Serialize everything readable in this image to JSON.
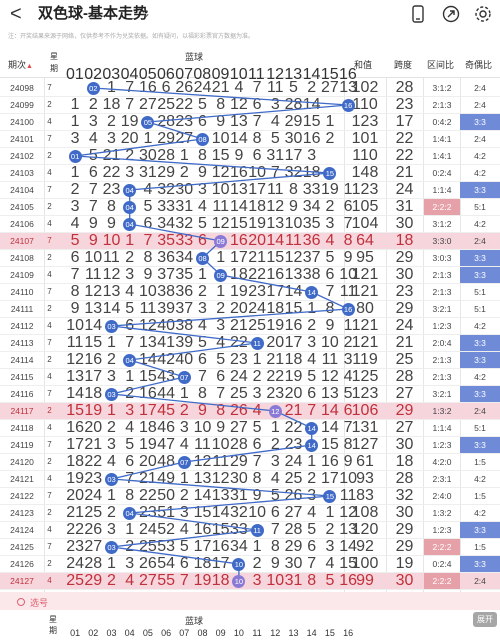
{
  "header": {
    "back_label": "<",
    "title": "双色球-基本走势",
    "title_chevron": "⌄",
    "notice": "注：开奖结果来源于网络，仅供参考不作为兑奖依据。如有疑问，以福彩彩票官方数据为准。"
  },
  "columns": {
    "issue": "期次",
    "star": "星期",
    "blue_group": "蓝球",
    "blue_numbers": [
      "01",
      "02",
      "03",
      "04",
      "05",
      "06",
      "07",
      "08",
      "09",
      "10",
      "11",
      "12",
      "13",
      "14",
      "15",
      "16"
    ],
    "sum": "和值",
    "span": "跨度",
    "zone_ratio": "区间比",
    "odd_even": "奇偶比"
  },
  "rows": [
    {
      "issue": "24098",
      "star": "7",
      "blue": 2,
      "hl": false,
      "sum": "102",
      "span": "28",
      "zone": "3:1:2",
      "oe": "2:4",
      "zone_red": false,
      "oe_blue": false,
      "cells": [
        "",
        "",
        "1",
        "7",
        "16",
        "6",
        "26",
        "24",
        "21",
        "4",
        "7",
        "11",
        "5",
        "2",
        "27",
        "13"
      ]
    },
    {
      "issue": "24099",
      "star": "2",
      "blue": 16,
      "hl": false,
      "sum": "110",
      "span": "23",
      "zone": "2:1:3",
      "oe": "2:4",
      "zone_red": false,
      "oe_blue": false,
      "cells": [
        "1",
        "2",
        "18",
        "7",
        "27",
        "25",
        "22",
        "5",
        "8",
        "12",
        "6",
        "3",
        "28",
        "14",
        "",
        ""
      ]
    },
    {
      "issue": "24100",
      "star": "4",
      "blue": 5,
      "hl": false,
      "sum": "123",
      "span": "17",
      "zone": "0:4:2",
      "oe": "3:3",
      "zone_red": false,
      "oe_blue": true,
      "cells": [
        "1",
        "3",
        "2",
        "19",
        "",
        "28",
        "23",
        "6",
        "9",
        "13",
        "7",
        "4",
        "29",
        "15",
        "1",
        ""
      ]
    },
    {
      "issue": "24101",
      "star": "7",
      "blue": 8,
      "hl": false,
      "sum": "101",
      "span": "22",
      "zone": "1:4:1",
      "oe": "2:4",
      "zone_red": false,
      "oe_blue": false,
      "cells": [
        "3",
        "4",
        "3",
        "20",
        "1",
        "29",
        "27",
        "",
        "10",
        "14",
        "8",
        "5",
        "30",
        "16",
        "2",
        ""
      ]
    },
    {
      "issue": "24102",
      "star": "2",
      "blue": 1,
      "hl": false,
      "sum": "110",
      "span": "22",
      "zone": "1:4:1",
      "oe": "4:2",
      "zone_red": false,
      "oe_blue": false,
      "cells": [
        "",
        "5",
        "21",
        "2",
        "30",
        "28",
        "1",
        "8",
        "15",
        "9",
        "6",
        "31",
        "17",
        "3",
        "",
        ""
      ]
    },
    {
      "issue": "24103",
      "star": "4",
      "blue": 15,
      "hl": false,
      "sum": "148",
      "span": "21",
      "zone": "0:2:4",
      "oe": "4:2",
      "zone_red": false,
      "oe_blue": false,
      "cells": [
        "1",
        "6",
        "22",
        "3",
        "31",
        "29",
        "2",
        "9",
        "12",
        "16",
        "10",
        "7",
        "32",
        "18",
        "",
        ""
      ]
    },
    {
      "issue": "24104",
      "star": "7",
      "blue": 4,
      "hl": false,
      "sum": "123",
      "span": "24",
      "zone": "1:1:4",
      "oe": "3:3",
      "zone_red": false,
      "oe_blue": true,
      "cells": [
        "2",
        "7",
        "23",
        "",
        "4",
        "32",
        "30",
        "3",
        "10",
        "13",
        "17",
        "11",
        "8",
        "33",
        "19",
        "1"
      ]
    },
    {
      "issue": "24105",
      "star": "2",
      "blue": 4,
      "hl": false,
      "sum": "105",
      "span": "31",
      "zone": "2:2:2",
      "oe": "5:1",
      "zone_red": true,
      "oe_blue": false,
      "cells": [
        "3",
        "7",
        "8",
        "",
        "5",
        "33",
        "31",
        "4",
        "11",
        "14",
        "18",
        "12",
        "9",
        "34",
        "2",
        "6"
      ]
    },
    {
      "issue": "24106",
      "star": "4",
      "blue": 4,
      "hl": false,
      "sum": "104",
      "span": "30",
      "zone": "3:1:2",
      "oe": "4:2",
      "zone_red": false,
      "oe_blue": false,
      "cells": [
        "4",
        "9",
        "9",
        "",
        "6",
        "34",
        "32",
        "5",
        "12",
        "15",
        "19",
        "13",
        "10",
        "35",
        "3",
        "7"
      ]
    },
    {
      "issue": "24107",
      "star": "7",
      "blue": 9,
      "hl": true,
      "sum": "64",
      "span": "18",
      "zone": "3:3:0",
      "oe": "2:4",
      "zone_red": false,
      "oe_blue": false,
      "cells": [
        "5",
        "9",
        "10",
        "1",
        "7",
        "35",
        "33",
        "6",
        "",
        "16",
        "20",
        "14",
        "11",
        "36",
        "4",
        "8"
      ]
    },
    {
      "issue": "24108",
      "star": "2",
      "blue": 8,
      "hl": false,
      "sum": "95",
      "span": "29",
      "zone": "3:0:3",
      "oe": "3:3",
      "zone_red": false,
      "oe_blue": true,
      "cells": [
        "6",
        "10",
        "11",
        "2",
        "8",
        "36",
        "34",
        "",
        "1",
        "17",
        "21",
        "15",
        "12",
        "37",
        "5",
        "9"
      ]
    },
    {
      "issue": "24109",
      "star": "4",
      "blue": 9,
      "hl": false,
      "sum": "121",
      "span": "30",
      "zone": "2:1:3",
      "oe": "3:3",
      "zone_red": false,
      "oe_blue": true,
      "cells": [
        "7",
        "11",
        "12",
        "3",
        "9",
        "37",
        "35",
        "1",
        "",
        "18",
        "22",
        "16",
        "13",
        "38",
        "6",
        "10"
      ]
    },
    {
      "issue": "24110",
      "star": "7",
      "blue": 14,
      "hl": false,
      "sum": "121",
      "span": "23",
      "zone": "2:1:3",
      "oe": "5:1",
      "zone_red": false,
      "oe_blue": false,
      "cells": [
        "8",
        "12",
        "13",
        "4",
        "10",
        "38",
        "36",
        "2",
        "1",
        "19",
        "23",
        "17",
        "14",
        "",
        "7",
        "11"
      ]
    },
    {
      "issue": "24111",
      "star": "2",
      "blue": 16,
      "hl": false,
      "sum": "80",
      "span": "29",
      "zone": "3:2:1",
      "oe": "5:1",
      "zone_red": false,
      "oe_blue": false,
      "cells": [
        "9",
        "13",
        "14",
        "5",
        "11",
        "39",
        "37",
        "3",
        "2",
        "20",
        "24",
        "18",
        "15",
        "1",
        "8",
        ""
      ]
    },
    {
      "issue": "24112",
      "star": "4",
      "blue": 3,
      "hl": false,
      "sum": "121",
      "span": "24",
      "zone": "1:2:3",
      "oe": "4:2",
      "zone_red": false,
      "oe_blue": false,
      "cells": [
        "10",
        "14",
        "",
        "6",
        "12",
        "40",
        "38",
        "4",
        "3",
        "21",
        "25",
        "19",
        "16",
        "2",
        "9",
        "1"
      ]
    },
    {
      "issue": "24113",
      "star": "7",
      "blue": 11,
      "hl": false,
      "sum": "121",
      "span": "21",
      "zone": "2:0:4",
      "oe": "3:3",
      "zone_red": false,
      "oe_blue": true,
      "cells": [
        "11",
        "15",
        "1",
        "7",
        "13",
        "41",
        "39",
        "5",
        "4",
        "22",
        "",
        "20",
        "17",
        "3",
        "10",
        "2"
      ]
    },
    {
      "issue": "24114",
      "star": "2",
      "blue": 4,
      "hl": false,
      "sum": "119",
      "span": "25",
      "zone": "2:1:3",
      "oe": "3:3",
      "zone_red": false,
      "oe_blue": true,
      "cells": [
        "12",
        "16",
        "2",
        "",
        "14",
        "42",
        "40",
        "6",
        "5",
        "23",
        "1",
        "21",
        "18",
        "4",
        "11",
        "3"
      ]
    },
    {
      "issue": "24115",
      "star": "4",
      "blue": 7,
      "hl": false,
      "sum": "125",
      "span": "28",
      "zone": "2:1:3",
      "oe": "4:2",
      "zone_red": false,
      "oe_blue": false,
      "cells": [
        "13",
        "17",
        "3",
        "1",
        "15",
        "43",
        "",
        "7",
        "6",
        "24",
        "2",
        "22",
        "19",
        "5",
        "12",
        "4"
      ]
    },
    {
      "issue": "24116",
      "star": "7",
      "blue": 3,
      "hl": false,
      "sum": "123",
      "span": "27",
      "zone": "3:2:1",
      "oe": "3:3",
      "zone_red": false,
      "oe_blue": true,
      "cells": [
        "14",
        "18",
        "",
        "2",
        "16",
        "44",
        "1",
        "8",
        "7",
        "25",
        "3",
        "23",
        "20",
        "6",
        "13",
        "5"
      ]
    },
    {
      "issue": "24117",
      "star": "2",
      "blue": 12,
      "hl": true,
      "sum": "106",
      "span": "29",
      "zone": "1:3:2",
      "oe": "2:4",
      "zone_red": false,
      "oe_blue": false,
      "cells": [
        "15",
        "19",
        "1",
        "3",
        "17",
        "45",
        "2",
        "9",
        "8",
        "26",
        "4",
        "",
        "21",
        "7",
        "14",
        "6"
      ]
    },
    {
      "issue": "24118",
      "star": "4",
      "blue": 14,
      "hl": false,
      "sum": "131",
      "span": "27",
      "zone": "1:1:4",
      "oe": "5:1",
      "zone_red": false,
      "oe_blue": false,
      "cells": [
        "16",
        "20",
        "2",
        "4",
        "18",
        "46",
        "3",
        "10",
        "9",
        "27",
        "5",
        "1",
        "22",
        "",
        "14",
        "7"
      ]
    },
    {
      "issue": "24119",
      "star": "7",
      "blue": 14,
      "hl": false,
      "sum": "127",
      "span": "30",
      "zone": "1:2:3",
      "oe": "3:3",
      "zone_red": false,
      "oe_blue": true,
      "cells": [
        "17",
        "21",
        "3",
        "5",
        "19",
        "47",
        "4",
        "11",
        "10",
        "28",
        "6",
        "2",
        "23",
        "",
        "15",
        "8"
      ]
    },
    {
      "issue": "24120",
      "star": "2",
      "blue": 7,
      "hl": false,
      "sum": "61",
      "span": "18",
      "zone": "4:2:0",
      "oe": "1:5",
      "zone_red": false,
      "oe_blue": false,
      "cells": [
        "18",
        "22",
        "4",
        "6",
        "20",
        "48",
        "",
        "12",
        "11",
        "29",
        "7",
        "3",
        "24",
        "1",
        "16",
        "9"
      ]
    },
    {
      "issue": "24121",
      "star": "4",
      "blue": 3,
      "hl": false,
      "sum": "93",
      "span": "28",
      "zone": "2:3:1",
      "oe": "4:2",
      "zone_red": false,
      "oe_blue": false,
      "cells": [
        "19",
        "23",
        "",
        "7",
        "21",
        "49",
        "1",
        "13",
        "12",
        "30",
        "8",
        "4",
        "25",
        "2",
        "17",
        "10"
      ]
    },
    {
      "issue": "24122",
      "star": "7",
      "blue": 15,
      "hl": false,
      "sum": "83",
      "span": "32",
      "zone": "2:4:0",
      "oe": "1:5",
      "zone_red": false,
      "oe_blue": false,
      "cells": [
        "20",
        "24",
        "1",
        "8",
        "22",
        "50",
        "2",
        "14",
        "13",
        "31",
        "9",
        "5",
        "26",
        "3",
        "",
        "11"
      ]
    },
    {
      "issue": "24123",
      "star": "2",
      "blue": 4,
      "hl": false,
      "sum": "108",
      "span": "30",
      "zone": "1:3:2",
      "oe": "4:2",
      "zone_red": false,
      "oe_blue": false,
      "cells": [
        "21",
        "25",
        "2",
        "",
        "23",
        "51",
        "3",
        "15",
        "14",
        "32",
        "10",
        "6",
        "27",
        "4",
        "1",
        "12"
      ]
    },
    {
      "issue": "24124",
      "star": "4",
      "blue": 11,
      "hl": false,
      "sum": "120",
      "span": "29",
      "zone": "1:2:3",
      "oe": "3:3",
      "zone_red": false,
      "oe_blue": true,
      "cells": [
        "22",
        "26",
        "3",
        "1",
        "24",
        "52",
        "4",
        "16",
        "15",
        "33",
        "",
        "7",
        "28",
        "5",
        "2",
        "13"
      ]
    },
    {
      "issue": "24125",
      "star": "7",
      "blue": 3,
      "hl": false,
      "sum": "92",
      "span": "29",
      "zone": "2:2:2",
      "oe": "1:5",
      "zone_red": true,
      "oe_blue": false,
      "cells": [
        "23",
        "27",
        "",
        "2",
        "25",
        "53",
        "5",
        "17",
        "16",
        "34",
        "1",
        "8",
        "29",
        "6",
        "3",
        "14"
      ]
    },
    {
      "issue": "24126",
      "star": "2",
      "blue": 10,
      "hl": false,
      "sum": "100",
      "span": "19",
      "zone": "0:2:4",
      "oe": "3:3",
      "zone_red": false,
      "oe_blue": true,
      "cells": [
        "24",
        "28",
        "1",
        "3",
        "26",
        "54",
        "6",
        "18",
        "17",
        "",
        "2",
        "9",
        "30",
        "7",
        "4",
        "15"
      ]
    },
    {
      "issue": "24127",
      "star": "4",
      "blue": 10,
      "hl": true,
      "sum": "99",
      "span": "30",
      "zone": "2:2:2",
      "oe": "2:4",
      "zone_red": true,
      "oe_blue": false,
      "cells": [
        "25",
        "29",
        "2",
        "4",
        "27",
        "55",
        "7",
        "19",
        "18",
        "",
        "3",
        "10",
        "31",
        "8",
        "5",
        "16"
      ]
    }
  ],
  "footer": {
    "select_label": "选号",
    "expand_label": "展开"
  }
}
